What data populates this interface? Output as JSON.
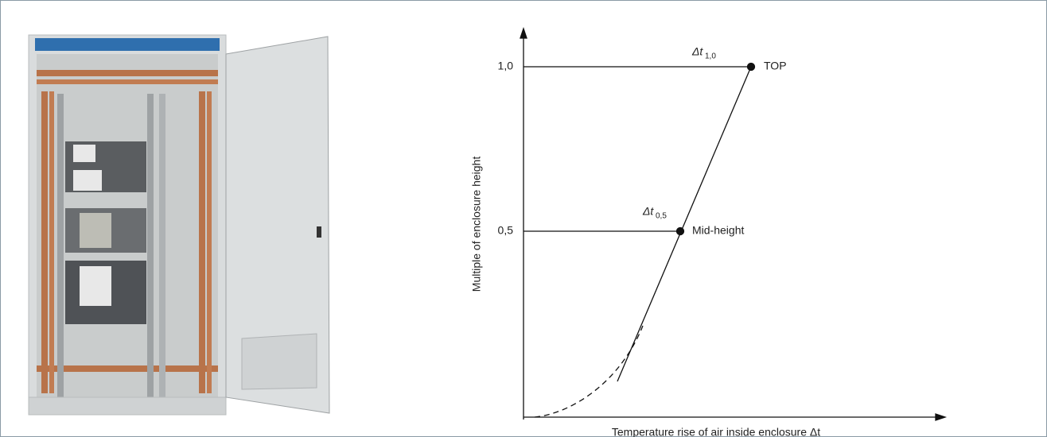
{
  "diagram": {
    "y_axis_label": "Multiple of enclosure height",
    "x_axis_label": "Temperature rise of air inside enclosure Δt",
    "y_ticks": [
      "1,0",
      "0,5"
    ],
    "points": [
      {
        "label": "TOP",
        "delta_symbol": "Δt",
        "delta_subscript": "1,0"
      },
      {
        "label": "Mid-height",
        "delta_symbol": "Δt",
        "delta_subscript": "0,5"
      }
    ]
  }
}
